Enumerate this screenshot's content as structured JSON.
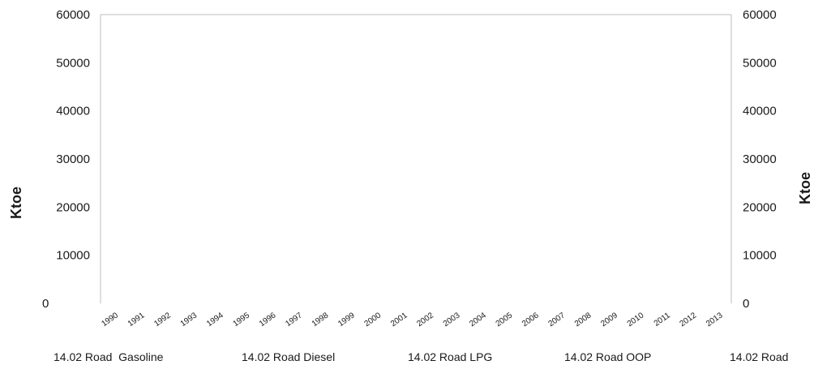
{
  "chart_data": {
    "type": "area",
    "title": "",
    "ylabel": "Ktoe",
    "ylabel_right": "Ktoe",
    "ylim": [
      0,
      60000
    ],
    "yticks": [
      "0",
      "10000",
      "20000",
      "30000",
      "40000",
      "50000",
      "60000"
    ],
    "y2ticks": [
      "0",
      "10000",
      "20000",
      "30000",
      "40000",
      "50000",
      "60000"
    ],
    "categories": [
      "1990",
      "1991",
      "1992",
      "1993",
      "1994",
      "1995",
      "1996",
      "1997",
      "1998",
      "1999",
      "2000",
      "2001",
      "2002",
      "2003",
      "2004",
      "2005",
      "2006",
      "2007",
      "2008",
      "2009",
      "2010",
      "2011",
      "2012",
      "2013"
    ],
    "legend_position": "bottom",
    "legend": [
      "14.02 Road  Gasoline",
      "14.02 Road Diesel",
      "14.02 Road LPG",
      "14.02 Road OOP",
      "14.02 Road"
    ],
    "series": [],
    "grid": false
  }
}
